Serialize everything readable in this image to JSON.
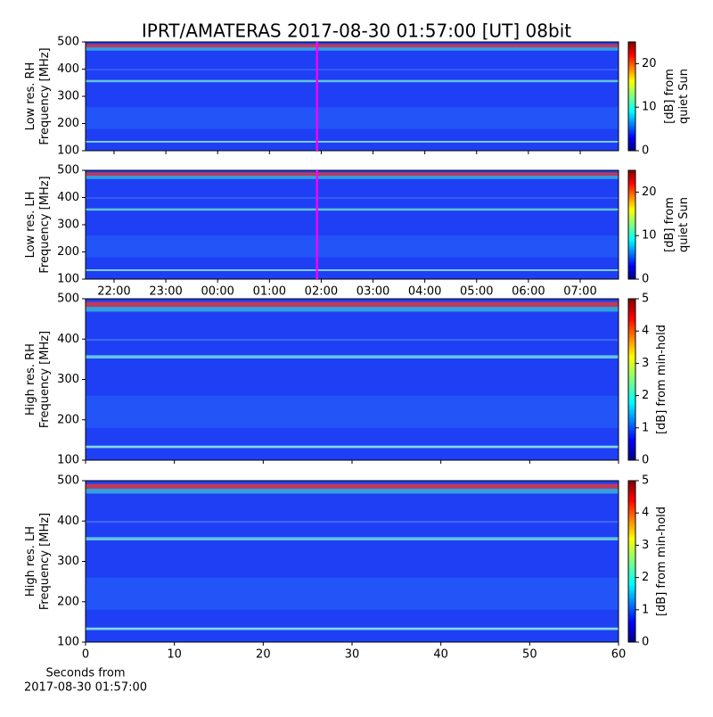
{
  "title": "IPRT/AMATERAS 2017-08-30 01:57:00 [UT]   08bit",
  "chart_data": [
    {
      "type": "heatmap",
      "ylabel": [
        "Low res. RH",
        "Frequency [MHz]"
      ],
      "ylim": [
        100,
        500
      ],
      "yticks": [
        100,
        200,
        300,
        400,
        500
      ],
      "xlim": [
        21.45,
        31.74
      ],
      "marker_x": 25.92,
      "marker_color": "#ff00ff",
      "colorbar": {
        "label": [
          "[dB] from",
          "quiet Sun"
        ],
        "lim": [
          0,
          25
        ],
        "ticks": [
          0,
          10,
          20
        ]
      }
    },
    {
      "type": "heatmap",
      "ylabel": [
        "Low res. LH",
        "Frequency [MHz]"
      ],
      "ylim": [
        100,
        500
      ],
      "yticks": [
        100,
        200,
        300,
        400,
        500
      ],
      "xlim": [
        21.45,
        31.74
      ],
      "marker_x": 25.92,
      "marker_color": "#ff00ff",
      "xticks": [
        {
          "value": 22,
          "label": "22:00"
        },
        {
          "value": 23,
          "label": "23:00"
        },
        {
          "value": 24,
          "label": "00:00"
        },
        {
          "value": 25,
          "label": "01:00"
        },
        {
          "value": 26,
          "label": "02:00"
        },
        {
          "value": 27,
          "label": "03:00"
        },
        {
          "value": 28,
          "label": "04:00"
        },
        {
          "value": 29,
          "label": "05:00"
        },
        {
          "value": 30,
          "label": "06:00"
        },
        {
          "value": 31,
          "label": "07:00"
        }
      ],
      "colorbar": {
        "label": [
          "[dB] from",
          "quiet Sun"
        ],
        "lim": [
          0,
          25
        ],
        "ticks": [
          0,
          10,
          20
        ]
      }
    },
    {
      "type": "heatmap",
      "ylabel": [
        "High res. RH",
        "Frequency [MHz]"
      ],
      "ylim": [
        100,
        500
      ],
      "yticks": [
        100,
        200,
        300,
        400,
        500
      ],
      "xlim": [
        0,
        60
      ],
      "colorbar": {
        "label": [
          "[dB] from min-hold"
        ],
        "lim": [
          0,
          5
        ],
        "ticks": [
          0,
          1,
          2,
          3,
          4,
          5
        ]
      }
    },
    {
      "type": "heatmap",
      "ylabel": [
        "High res. LH",
        "Frequency [MHz]"
      ],
      "ylim": [
        100,
        500
      ],
      "yticks": [
        100,
        200,
        300,
        400,
        500
      ],
      "xlim": [
        0,
        60
      ],
      "xticks": [
        0,
        10,
        20,
        30,
        40,
        50,
        60
      ],
      "xlabel": [
        "Seconds from",
        "2017-08-30 01:57:00"
      ],
      "colorbar": {
        "label": [
          "[dB] from min-hold"
        ],
        "lim": [
          0,
          5
        ],
        "ticks": [
          0,
          1,
          2,
          3,
          4,
          5
        ]
      }
    }
  ]
}
